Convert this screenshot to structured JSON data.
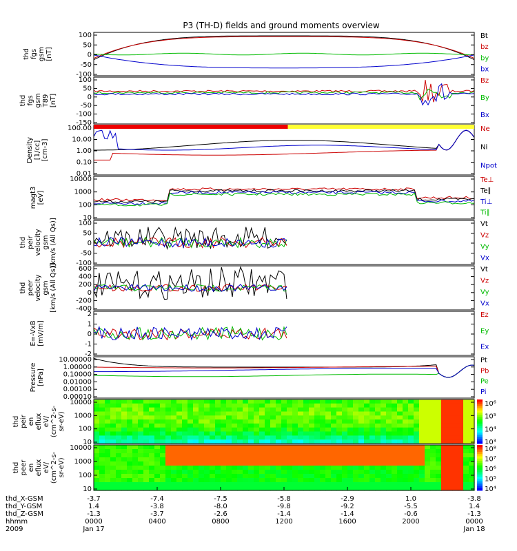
{
  "chart_data": {
    "type": "line",
    "title": "P3 (TH-D) fields and ground moments overview",
    "panels": [
      {
        "ylabel": [
          "thd",
          "fgs",
          "gsm",
          "[nT]"
        ],
        "yticks": [
          "100",
          "50",
          "0",
          "-50",
          "-100"
        ],
        "legend": [
          {
            "name": "Bt",
            "color": "#000000"
          },
          {
            "name": "bz",
            "color": "#cc0000"
          },
          {
            "name": "by",
            "color": "#00bb00"
          },
          {
            "name": "bx",
            "color": "#0000cc"
          }
        ],
        "ylim": [
          -100,
          100
        ]
      },
      {
        "ylabel": [
          "thd",
          "fgs",
          "gsm",
          "T89",
          "[nT]"
        ],
        "yticks": [
          "100",
          "50",
          "0",
          "-50",
          "-100",
          "-150"
        ],
        "legend": [
          {
            "name": "Bz",
            "color": "#cc0000"
          },
          {
            "name": "By",
            "color": "#00bb00"
          },
          {
            "name": "Bx",
            "color": "#0000cc"
          }
        ],
        "ylim": [
          -170,
          100
        ]
      },
      {
        "ylabel": [
          "Density",
          "[1/cc]",
          "[cm-3]"
        ],
        "yticks": [
          "100.00",
          "10.00",
          "1.00",
          "0.10",
          "0.01"
        ],
        "legend": [
          {
            "name": "Ne",
            "color": "#cc0000"
          },
          {
            "name": "Ni",
            "color": "#000000"
          },
          {
            "name": "Npot",
            "color": "#0000cc"
          }
        ],
        "scale": "log"
      },
      {
        "ylabel": [
          "magt3",
          "[eV]"
        ],
        "yticks": [
          "10000",
          "1000",
          "100",
          "10"
        ],
        "legend": [
          {
            "name": "Te⊥",
            "color": "#cc0000"
          },
          {
            "name": "Te∥",
            "color": "#000000"
          },
          {
            "name": "Ti⊥",
            "color": "#0000cc"
          },
          {
            "name": "Ti∥",
            "color": "#00bb00"
          }
        ],
        "scale": "log"
      },
      {
        "ylabel": [
          "thd",
          "peir",
          "velocity",
          "gsm",
          "[km/s (All Qs)]"
        ],
        "yticks": [
          "100",
          "50",
          "0",
          "-50",
          "-100"
        ],
        "legend": [
          {
            "name": "Vt",
            "color": "#000000"
          },
          {
            "name": "Vz",
            "color": "#cc0000"
          },
          {
            "name": "Vy",
            "color": "#00bb00"
          },
          {
            "name": "Vx",
            "color": "#0000cc"
          }
        ],
        "ylim": [
          -100,
          100
        ]
      },
      {
        "ylabel": [
          "thd",
          "peer",
          "velocity",
          "gsm",
          "[km/s (All Qs)]"
        ],
        "yticks": [
          "600",
          "400",
          "200",
          "0",
          "-200",
          "-400"
        ],
        "legend": [
          {
            "name": "Vt",
            "color": "#000000"
          },
          {
            "name": "Vz",
            "color": "#cc0000"
          },
          {
            "name": "Vy",
            "color": "#00bb00"
          },
          {
            "name": "Vx",
            "color": "#0000cc"
          }
        ],
        "ylim": [
          -400,
          600
        ]
      },
      {
        "ylabel": [
          "E=-VxB",
          "[mV/m]"
        ],
        "yticks": [
          "2",
          "1",
          "0",
          "-1",
          "-2"
        ],
        "legend": [
          {
            "name": "Ez",
            "color": "#cc0000"
          },
          {
            "name": "Ey",
            "color": "#00bb00"
          },
          {
            "name": "Ex",
            "color": "#0000cc"
          }
        ],
        "ylim": [
          -2,
          2
        ]
      },
      {
        "ylabel": [
          "Pressure",
          "[nPa]"
        ],
        "yticks": [
          "10.00000",
          "1.00000",
          "0.10000",
          "0.01000",
          "0.00100",
          "0.00010"
        ],
        "legend": [
          {
            "name": "Pt",
            "color": "#000000"
          },
          {
            "name": "Pb",
            "color": "#cc0000"
          },
          {
            "name": "Pe",
            "color": "#00bb00"
          },
          {
            "name": "Pi",
            "color": "#0000cc"
          }
        ],
        "scale": "log"
      },
      {
        "ylabel": [
          "thd",
          "peir",
          "en",
          "eflux",
          "eV/",
          "(cm^2-s-",
          "sr-eV)"
        ],
        "yticks": [
          "10000",
          "1000",
          "100",
          "10"
        ],
        "colorbar": [
          "10⁶",
          "10⁵",
          "10⁴",
          "10³"
        ],
        "type": "heatmap"
      },
      {
        "ylabel": [
          "thd",
          "peer",
          "en",
          "eflux",
          "eV/",
          "(cm^2-s-",
          "sr-eV)"
        ],
        "yticks": [
          "10000",
          "1000",
          "100",
          "10"
        ],
        "colorbar": [
          "10⁸",
          "10⁷",
          "10⁶",
          "10⁵",
          "10⁴"
        ],
        "type": "heatmap"
      }
    ],
    "x_axis": {
      "row_labels": [
        "thd_X-GSM",
        "thd_Y-GSM",
        "thd_Z-GSM",
        "hhmm",
        "2009"
      ],
      "columns": [
        {
          "values": [
            "-3.7",
            "1.4",
            "-1.3",
            "0000",
            "Jan 17"
          ]
        },
        {
          "values": [
            "-7.4",
            "-3.8",
            "-3.7",
            "0400",
            ""
          ]
        },
        {
          "values": [
            "-7.5",
            "-8.0",
            "-2.6",
            "0800",
            ""
          ]
        },
        {
          "values": [
            "-5.8",
            "-9.8",
            "-1.4",
            "1200",
            ""
          ]
        },
        {
          "values": [
            "-2.9",
            "-9.2",
            "-1.4",
            "1600",
            ""
          ]
        },
        {
          "values": [
            "1.0",
            "-5.5",
            "-0.6",
            "2000",
            ""
          ]
        },
        {
          "values": [
            "-3.8",
            "1.4",
            "-1.3",
            "0000",
            "Jan 18"
          ]
        }
      ]
    }
  }
}
